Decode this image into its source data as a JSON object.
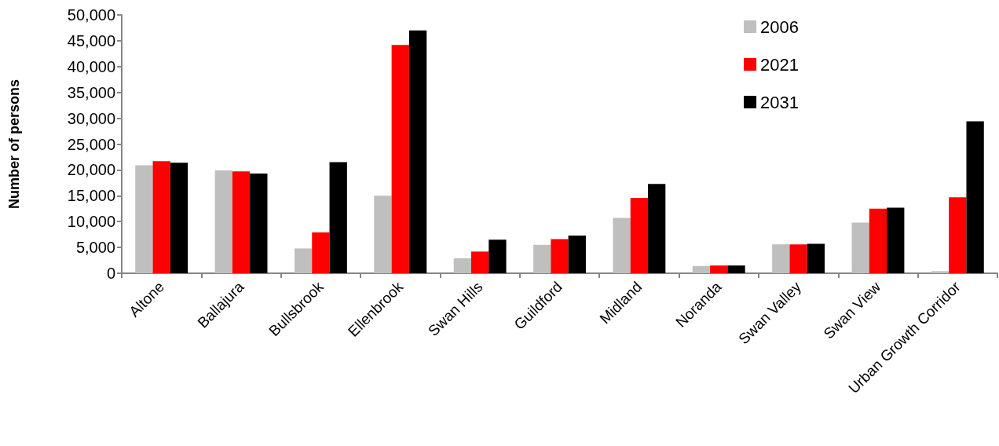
{
  "chart_data": {
    "type": "bar",
    "ylabel": "Number of persons",
    "categories": [
      "Altone",
      "Ballajura",
      "Bullsbrook",
      "Ellenbrook",
      "Swan Hills",
      "Guildford",
      "Midland",
      "Noranda",
      "Swan Valley",
      "Swan View",
      "Urban Growth Corridor"
    ],
    "series": [
      {
        "name": "2006",
        "color": "#bfbfbf",
        "values": [
          20900,
          19900,
          4800,
          15000,
          2900,
          5500,
          10700,
          1400,
          5600,
          9800,
          400
        ]
      },
      {
        "name": "2021",
        "color": "#ff0000",
        "values": [
          21700,
          19700,
          7900,
          44200,
          4200,
          6600,
          14600,
          1500,
          5600,
          12500,
          14700
        ]
      },
      {
        "name": "2031",
        "color": "#000000",
        "values": [
          21400,
          19300,
          21500,
          47000,
          6500,
          7300,
          17300,
          1500,
          5700,
          12700,
          29400
        ]
      }
    ],
    "ylim": [
      0,
      50000
    ],
    "yticks": [
      0,
      {
        "value": 5000,
        "label": "5,000"
      },
      {
        "value": 10000,
        "label": "10,000"
      },
      {
        "value": 15000,
        "label": "15,000"
      },
      {
        "value": 20000,
        "label": "20,000"
      },
      {
        "value": 25000,
        "label": "25,000"
      },
      {
        "value": 30000,
        "label": "30,000"
      },
      {
        "value": 35000,
        "label": "35,000"
      },
      {
        "value": 40000,
        "label": "40,000"
      },
      {
        "value": 45000,
        "label": "45,000"
      },
      {
        "value": 50000,
        "label": "50,000"
      }
    ],
    "legend": "top right",
    "grid": false
  }
}
